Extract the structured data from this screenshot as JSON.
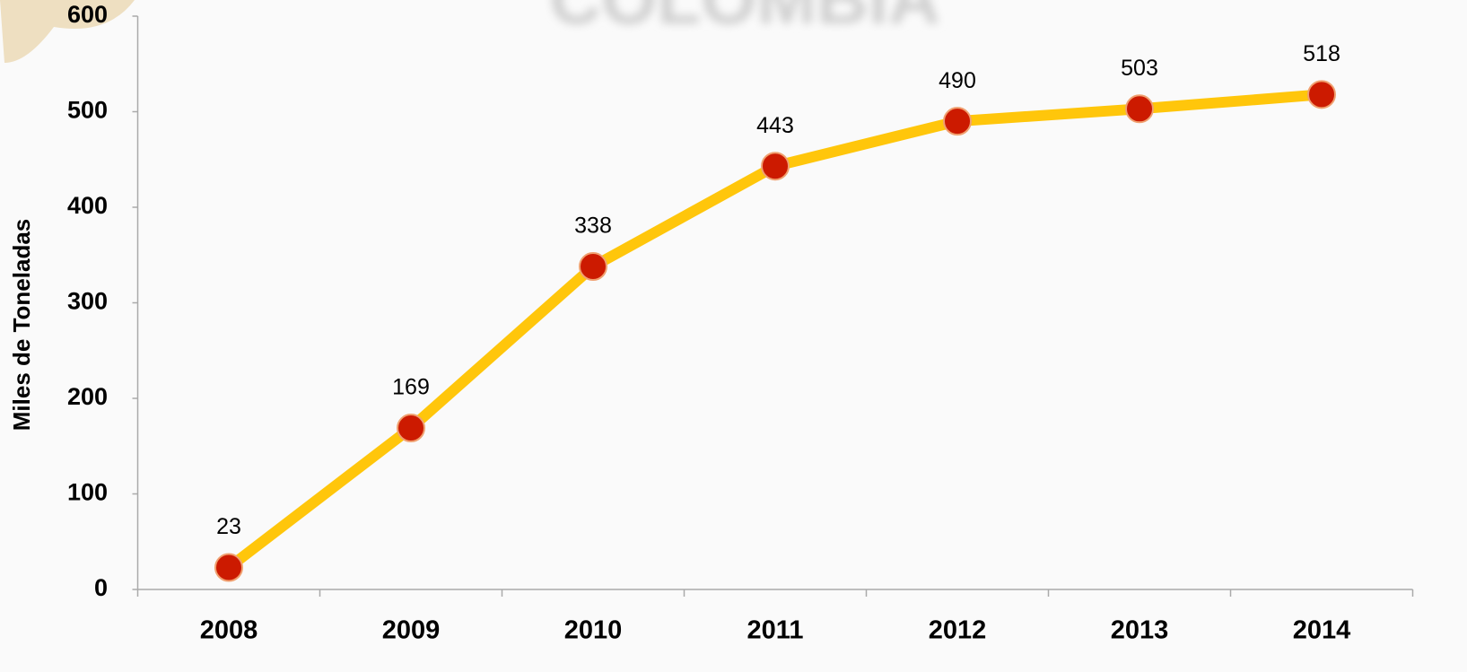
{
  "chart_data": {
    "type": "line",
    "title": "COLOMBIA",
    "y_label": "Miles de Toneladas",
    "categories": [
      "2008",
      "2009",
      "2010",
      "2011",
      "2012",
      "2013",
      "2014"
    ],
    "series": [
      {
        "name": "Miles de Toneladas",
        "color": "#ffc60b",
        "marker_color": "#cc1a00",
        "values": [
          23,
          169,
          338,
          443,
          490,
          503,
          518
        ]
      }
    ],
    "ylim": [
      0,
      600
    ],
    "yticks": [
      0,
      100,
      200,
      300,
      400,
      500,
      600
    ],
    "grid": false
  }
}
